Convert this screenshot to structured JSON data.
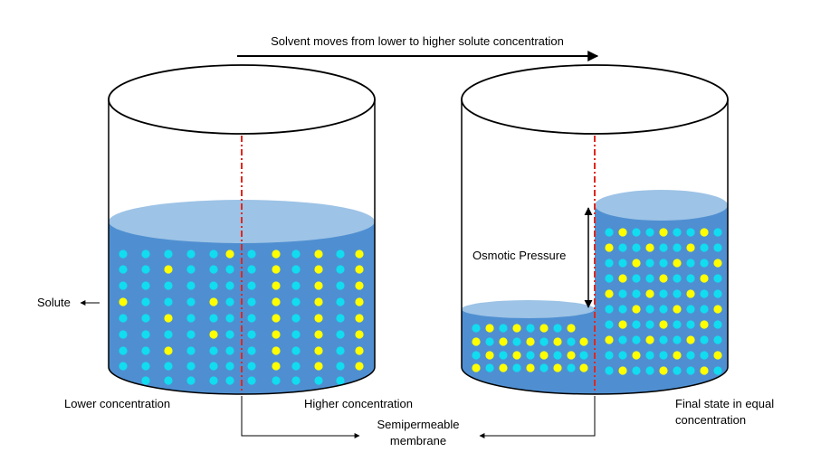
{
  "colors": {
    "water": "#4f8fd1",
    "water_surface": "#9dc3e6",
    "solvent_particle": "#11dcf0",
    "solute_particle": "#ffff00",
    "membrane": "#e0281e",
    "outline": "#000000"
  },
  "labels": {
    "top_arrow": "Solvent moves from lower to higher solute concentration",
    "solute": "Solute",
    "lower_concentration": "Lower concentration",
    "higher_concentration": "Higher concentration",
    "semipermeable_line1": "Semipermeable",
    "semipermeable_line2": "membrane",
    "osmotic_pressure": "Osmotic Pressure",
    "final_state_line1": "Final state in equal",
    "final_state_line2": "concentration"
  }
}
